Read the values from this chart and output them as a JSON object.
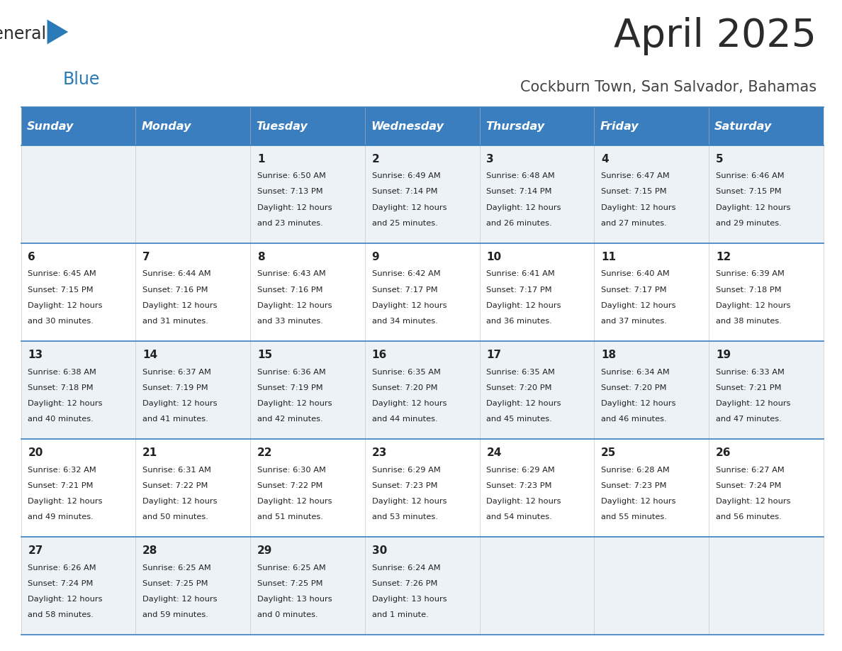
{
  "title": "April 2025",
  "subtitle": "Cockburn Town, San Salvador, Bahamas",
  "header_bg": "#3a7ebf",
  "header_text_color": "#ffffff",
  "days_of_week": [
    "Sunday",
    "Monday",
    "Tuesday",
    "Wednesday",
    "Thursday",
    "Friday",
    "Saturday"
  ],
  "row_bg_light": "#edf2f7",
  "row_bg_white": "#ffffff",
  "cell_border_color": "#3a7ebf",
  "title_color": "#2b2b2b",
  "subtitle_color": "#444444",
  "text_color": "#222222",
  "logo_general_color": "#2b2b2b",
  "logo_blue_color": "#2a7ab8",
  "logo_triangle_color": "#2a7ab8",
  "calendar": [
    [
      {
        "day": null,
        "sunrise": null,
        "sunset": null,
        "daylight": null
      },
      {
        "day": null,
        "sunrise": null,
        "sunset": null,
        "daylight": null
      },
      {
        "day": 1,
        "sunrise": "6:50 AM",
        "sunset": "7:13 PM",
        "daylight": "12 hours\nand 23 minutes."
      },
      {
        "day": 2,
        "sunrise": "6:49 AM",
        "sunset": "7:14 PM",
        "daylight": "12 hours\nand 25 minutes."
      },
      {
        "day": 3,
        "sunrise": "6:48 AM",
        "sunset": "7:14 PM",
        "daylight": "12 hours\nand 26 minutes."
      },
      {
        "day": 4,
        "sunrise": "6:47 AM",
        "sunset": "7:15 PM",
        "daylight": "12 hours\nand 27 minutes."
      },
      {
        "day": 5,
        "sunrise": "6:46 AM",
        "sunset": "7:15 PM",
        "daylight": "12 hours\nand 29 minutes."
      }
    ],
    [
      {
        "day": 6,
        "sunrise": "6:45 AM",
        "sunset": "7:15 PM",
        "daylight": "12 hours\nand 30 minutes."
      },
      {
        "day": 7,
        "sunrise": "6:44 AM",
        "sunset": "7:16 PM",
        "daylight": "12 hours\nand 31 minutes."
      },
      {
        "day": 8,
        "sunrise": "6:43 AM",
        "sunset": "7:16 PM",
        "daylight": "12 hours\nand 33 minutes."
      },
      {
        "day": 9,
        "sunrise": "6:42 AM",
        "sunset": "7:17 PM",
        "daylight": "12 hours\nand 34 minutes."
      },
      {
        "day": 10,
        "sunrise": "6:41 AM",
        "sunset": "7:17 PM",
        "daylight": "12 hours\nand 36 minutes."
      },
      {
        "day": 11,
        "sunrise": "6:40 AM",
        "sunset": "7:17 PM",
        "daylight": "12 hours\nand 37 minutes."
      },
      {
        "day": 12,
        "sunrise": "6:39 AM",
        "sunset": "7:18 PM",
        "daylight": "12 hours\nand 38 minutes."
      }
    ],
    [
      {
        "day": 13,
        "sunrise": "6:38 AM",
        "sunset": "7:18 PM",
        "daylight": "12 hours\nand 40 minutes."
      },
      {
        "day": 14,
        "sunrise": "6:37 AM",
        "sunset": "7:19 PM",
        "daylight": "12 hours\nand 41 minutes."
      },
      {
        "day": 15,
        "sunrise": "6:36 AM",
        "sunset": "7:19 PM",
        "daylight": "12 hours\nand 42 minutes."
      },
      {
        "day": 16,
        "sunrise": "6:35 AM",
        "sunset": "7:20 PM",
        "daylight": "12 hours\nand 44 minutes."
      },
      {
        "day": 17,
        "sunrise": "6:35 AM",
        "sunset": "7:20 PM",
        "daylight": "12 hours\nand 45 minutes."
      },
      {
        "day": 18,
        "sunrise": "6:34 AM",
        "sunset": "7:20 PM",
        "daylight": "12 hours\nand 46 minutes."
      },
      {
        "day": 19,
        "sunrise": "6:33 AM",
        "sunset": "7:21 PM",
        "daylight": "12 hours\nand 47 minutes."
      }
    ],
    [
      {
        "day": 20,
        "sunrise": "6:32 AM",
        "sunset": "7:21 PM",
        "daylight": "12 hours\nand 49 minutes."
      },
      {
        "day": 21,
        "sunrise": "6:31 AM",
        "sunset": "7:22 PM",
        "daylight": "12 hours\nand 50 minutes."
      },
      {
        "day": 22,
        "sunrise": "6:30 AM",
        "sunset": "7:22 PM",
        "daylight": "12 hours\nand 51 minutes."
      },
      {
        "day": 23,
        "sunrise": "6:29 AM",
        "sunset": "7:23 PM",
        "daylight": "12 hours\nand 53 minutes."
      },
      {
        "day": 24,
        "sunrise": "6:29 AM",
        "sunset": "7:23 PM",
        "daylight": "12 hours\nand 54 minutes."
      },
      {
        "day": 25,
        "sunrise": "6:28 AM",
        "sunset": "7:23 PM",
        "daylight": "12 hours\nand 55 minutes."
      },
      {
        "day": 26,
        "sunrise": "6:27 AM",
        "sunset": "7:24 PM",
        "daylight": "12 hours\nand 56 minutes."
      }
    ],
    [
      {
        "day": 27,
        "sunrise": "6:26 AM",
        "sunset": "7:24 PM",
        "daylight": "12 hours\nand 58 minutes."
      },
      {
        "day": 28,
        "sunrise": "6:25 AM",
        "sunset": "7:25 PM",
        "daylight": "12 hours\nand 59 minutes."
      },
      {
        "day": 29,
        "sunrise": "6:25 AM",
        "sunset": "7:25 PM",
        "daylight": "13 hours\nand 0 minutes."
      },
      {
        "day": 30,
        "sunrise": "6:24 AM",
        "sunset": "7:26 PM",
        "daylight": "13 hours\nand 1 minute."
      },
      {
        "day": null,
        "sunrise": null,
        "sunset": null,
        "daylight": null
      },
      {
        "day": null,
        "sunrise": null,
        "sunset": null,
        "daylight": null
      },
      {
        "day": null,
        "sunrise": null,
        "sunset": null,
        "daylight": null
      }
    ]
  ]
}
